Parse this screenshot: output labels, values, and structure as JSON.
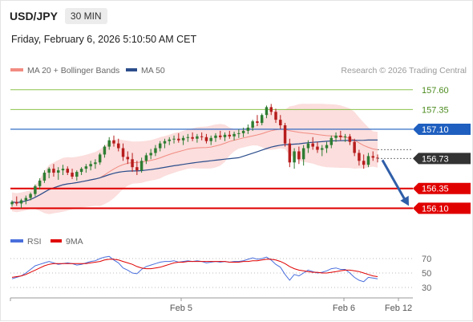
{
  "header": {
    "symbol": "USD/JPY",
    "timeframe": "30 MIN"
  },
  "datetime": "Friday, February 6, 2026 5:10:50 AM CET",
  "legend": {
    "ma20": {
      "label": "MA 20 + Bollinger Bands",
      "color": "#f28b82"
    },
    "ma50": {
      "label": "MA 50",
      "color": "#2b4d8c"
    }
  },
  "copyright": "Research © 2026 Trading Central",
  "colors": {
    "up": "#2e7d32",
    "down": "#b71c1c",
    "resistance": "#8bc34a",
    "pivot": "#1f5fbf",
    "support": "#e00000",
    "band": "#f9d3d1",
    "rsi": "#4a6fdc",
    "rsi_ma": "#e00000"
  },
  "chart_data": [
    {
      "type": "candlestick",
      "ylim": [
        155.9,
        157.75
      ],
      "levels": [
        {
          "value": 157.6,
          "label": "157.60",
          "kind": "resistance"
        },
        {
          "value": 157.35,
          "label": "157.35",
          "kind": "resistance"
        },
        {
          "value": 157.1,
          "label": "157.10",
          "kind": "pivot"
        },
        {
          "value": 156.35,
          "label": "156.35",
          "kind": "support"
        },
        {
          "value": 156.1,
          "label": "156.10",
          "kind": "support"
        }
      ],
      "last_price": {
        "value": 156.73,
        "label": "156.73"
      },
      "x_ticks": [
        "Feb 5",
        "Feb 6",
        "Feb 12"
      ],
      "candles": [
        [
          156.15,
          156.2,
          156.12,
          156.18
        ],
        [
          156.18,
          156.25,
          156.13,
          156.16
        ],
        [
          156.16,
          156.22,
          156.1,
          156.2
        ],
        [
          156.2,
          156.26,
          156.15,
          156.23
        ],
        [
          156.23,
          156.3,
          156.2,
          156.28
        ],
        [
          156.28,
          156.4,
          156.25,
          156.38
        ],
        [
          156.38,
          156.48,
          156.34,
          156.45
        ],
        [
          156.45,
          156.58,
          156.42,
          156.55
        ],
        [
          156.55,
          156.62,
          156.48,
          156.6
        ],
        [
          156.6,
          156.66,
          156.5,
          156.55
        ],
        [
          156.55,
          156.62,
          156.46,
          156.58
        ],
        [
          156.58,
          156.65,
          156.52,
          156.6
        ],
        [
          156.6,
          156.63,
          156.52,
          156.55
        ],
        [
          156.55,
          156.6,
          156.47,
          156.5
        ],
        [
          156.5,
          156.58,
          156.45,
          156.56
        ],
        [
          156.56,
          156.62,
          156.52,
          156.6
        ],
        [
          156.6,
          156.66,
          156.55,
          156.63
        ],
        [
          156.63,
          156.7,
          156.58,
          156.66
        ],
        [
          156.66,
          156.72,
          156.6,
          156.68
        ],
        [
          156.68,
          156.8,
          156.65,
          156.78
        ],
        [
          156.78,
          156.9,
          156.74,
          156.88
        ],
        [
          156.88,
          157.0,
          156.84,
          156.96
        ],
        [
          156.96,
          157.02,
          156.88,
          156.92
        ],
        [
          156.92,
          156.98,
          156.82,
          156.86
        ],
        [
          156.86,
          156.92,
          156.7,
          156.75
        ],
        [
          156.75,
          156.82,
          156.66,
          156.72
        ],
        [
          156.72,
          156.8,
          156.56,
          156.62
        ],
        [
          156.62,
          156.7,
          156.52,
          156.58
        ],
        [
          156.58,
          156.74,
          156.55,
          156.7
        ],
        [
          156.7,
          156.8,
          156.66,
          156.77
        ],
        [
          156.77,
          156.85,
          156.72,
          156.8
        ],
        [
          156.8,
          156.9,
          156.76,
          156.86
        ],
        [
          156.86,
          156.95,
          156.82,
          156.92
        ],
        [
          156.92,
          156.98,
          156.86,
          156.95
        ],
        [
          156.95,
          157.0,
          156.9,
          156.97
        ],
        [
          156.97,
          157.02,
          156.92,
          156.98
        ],
        [
          156.98,
          157.05,
          156.93,
          156.96
        ],
        [
          156.96,
          157.02,
          156.9,
          156.99
        ],
        [
          156.99,
          157.04,
          156.94,
          157.0
        ],
        [
          157.0,
          157.06,
          156.95,
          156.98
        ],
        [
          156.98,
          157.04,
          156.93,
          157.01
        ],
        [
          157.01,
          157.06,
          156.96,
          157.0
        ],
        [
          157.0,
          157.04,
          156.92,
          156.95
        ],
        [
          156.95,
          157.02,
          156.9,
          156.99
        ],
        [
          156.99,
          157.05,
          156.94,
          157.02
        ],
        [
          157.02,
          157.08,
          156.97,
          157.0
        ],
        [
          157.0,
          157.06,
          156.95,
          157.03
        ],
        [
          157.03,
          157.08,
          156.98,
          157.01
        ],
        [
          157.01,
          157.07,
          156.96,
          157.04
        ],
        [
          157.04,
          157.1,
          156.99,
          157.05
        ],
        [
          157.05,
          157.12,
          157.0,
          157.08
        ],
        [
          157.08,
          157.16,
          157.04,
          157.12
        ],
        [
          157.12,
          157.22,
          157.08,
          157.2
        ],
        [
          157.2,
          157.28,
          157.14,
          157.18
        ],
        [
          157.18,
          157.3,
          157.15,
          157.28
        ],
        [
          157.28,
          157.4,
          157.24,
          157.38
        ],
        [
          157.38,
          157.42,
          157.28,
          157.32
        ],
        [
          157.32,
          157.36,
          157.18,
          157.22
        ],
        [
          157.22,
          157.28,
          157.1,
          157.15
        ],
        [
          157.15,
          157.18,
          156.88,
          156.92
        ],
        [
          156.92,
          156.98,
          156.62,
          156.68
        ],
        [
          156.68,
          156.86,
          156.6,
          156.82
        ],
        [
          156.82,
          156.88,
          156.66,
          156.72
        ],
        [
          156.72,
          156.9,
          156.64,
          156.86
        ],
        [
          156.86,
          156.96,
          156.8,
          156.92
        ],
        [
          156.92,
          157.0,
          156.84,
          156.88
        ],
        [
          156.88,
          156.94,
          156.8,
          156.84
        ],
        [
          156.84,
          156.9,
          156.76,
          156.86
        ],
        [
          156.86,
          156.94,
          156.8,
          156.9
        ],
        [
          156.9,
          157.02,
          156.86,
          156.99
        ],
        [
          156.99,
          157.06,
          156.94,
          157.02
        ],
        [
          157.02,
          157.08,
          156.96,
          157.0
        ],
        [
          157.0,
          157.04,
          156.94,
          157.01
        ],
        [
          157.01,
          157.04,
          156.9,
          156.94
        ],
        [
          156.94,
          156.98,
          156.76,
          156.8
        ],
        [
          156.8,
          156.84,
          156.64,
          156.7
        ],
        [
          156.7,
          156.78,
          156.6,
          156.65
        ],
        [
          156.65,
          156.8,
          156.62,
          156.76
        ],
        [
          156.76,
          156.82,
          156.7,
          156.74
        ],
        [
          156.74,
          156.78,
          156.68,
          156.73
        ]
      ]
    },
    {
      "type": "line",
      "series": [
        {
          "name": "RSI",
          "values": [
            42,
            44,
            46,
            50,
            55,
            60,
            62,
            64,
            66,
            64,
            62,
            63,
            64,
            63,
            61,
            62,
            64,
            66,
            67,
            70,
            72,
            73,
            68,
            64,
            57,
            54,
            50,
            49,
            55,
            59,
            61,
            63,
            65,
            66,
            66,
            67,
            65,
            66,
            67,
            66,
            67,
            66,
            64,
            65,
            66,
            65,
            66,
            65,
            66,
            66,
            67,
            69,
            71,
            69,
            70,
            72,
            68,
            62,
            58,
            48,
            40,
            48,
            46,
            50,
            54,
            52,
            50,
            51,
            53,
            56,
            57,
            55,
            55,
            50,
            44,
            40,
            38,
            44,
            43,
            42
          ]
        },
        {
          "name": "9MA",
          "values": [
            44,
            45,
            46,
            48,
            51,
            54,
            57,
            60,
            62,
            63,
            63,
            63,
            63,
            63,
            63,
            63,
            63,
            64,
            65,
            66,
            68,
            69,
            69,
            68,
            66,
            64,
            62,
            59,
            57,
            56,
            56,
            57,
            58,
            60,
            62,
            64,
            65,
            65,
            66,
            66,
            66,
            66,
            66,
            66,
            66,
            66,
            66,
            65,
            65,
            65,
            66,
            66,
            67,
            67,
            68,
            69,
            69,
            68,
            66,
            63,
            59,
            56,
            54,
            53,
            52,
            51,
            51,
            50,
            50,
            51,
            52,
            53,
            54,
            54,
            53,
            52,
            50,
            48,
            46,
            45
          ]
        }
      ],
      "ylim": [
        20,
        80
      ],
      "y_ticks": [
        "70",
        "50",
        "30"
      ]
    }
  ]
}
